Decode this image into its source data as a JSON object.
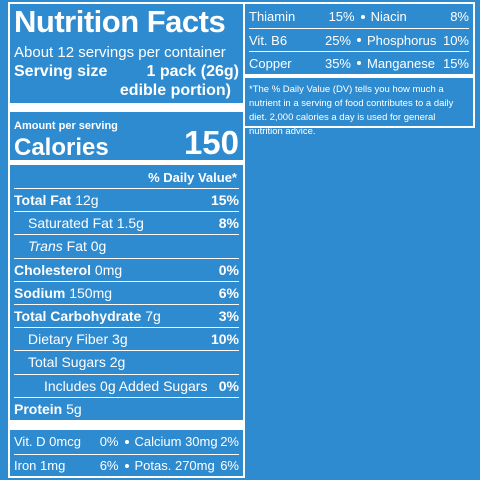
{
  "header": {
    "title": "Nutrition Facts",
    "servings": "About 12 servings per container",
    "serving_size_label": "Serving size",
    "serving_size_value": "1 pack (26g)",
    "serving_size_note": "edible portion)"
  },
  "calories": {
    "caption": "Amount per serving",
    "label": "Calories",
    "value": "150"
  },
  "daily_value_header": "% Daily Value*",
  "nutrients": [
    {
      "name": "Total Fat",
      "amount": "12g",
      "dv": "15%"
    },
    {
      "name": "Saturated Fat",
      "amount": "1.5g",
      "dv": "8%"
    },
    {
      "name": "Trans",
      "amount": "Fat 0g"
    },
    {
      "name": "Cholesterol",
      "amount": "0mg",
      "dv": "0%"
    },
    {
      "name": "Sodium",
      "amount": "150mg",
      "dv": "6%"
    },
    {
      "name": "Total Carbohydrate",
      "amount": "7g",
      "dv": "3%"
    },
    {
      "name": "Dietary Fiber",
      "amount": "3g",
      "dv": "10%"
    },
    {
      "name": "Total Sugars",
      "amount": "2g"
    },
    {
      "name": "Includes 0g Added Sugars",
      "dv": "0%"
    },
    {
      "name": "Protein",
      "amount": "5g"
    }
  ],
  "minerals_left": [
    [
      {
        "name": "Vit. D 0mcg",
        "dv": "0%"
      },
      {
        "name": "Calcium 30mg",
        "dv": "2%"
      }
    ],
    [
      {
        "name": "Iron 1mg",
        "dv": "6%"
      },
      {
        "name": "Potas. 270mg",
        "dv": "6%"
      }
    ]
  ],
  "minerals_right": [
    [
      {
        "name": "Thiamin",
        "dv": "15%"
      },
      {
        "name": "Niacin",
        "dv": "8%"
      }
    ],
    [
      {
        "name": "Vit. B6",
        "dv": "25%"
      },
      {
        "name": "Phosphorus",
        "dv": "10%"
      }
    ],
    [
      {
        "name": "Copper",
        "dv": "35%"
      },
      {
        "name": "Manganese",
        "dv": "15%"
      }
    ]
  ],
  "footnote": "*The % Daily Value (DV) tells you how much a nutrient in a serving of food contributes to a daily diet. 2,000 calories a day is used for general nutrition advice."
}
